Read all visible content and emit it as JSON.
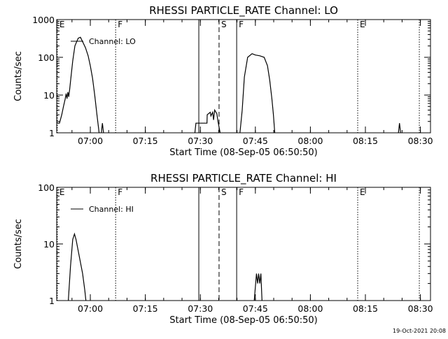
{
  "footer_timestamp": "19-Oct-2021 20:08",
  "chart_data": [
    {
      "type": "line",
      "title": "RHESSI PARTICLE_RATE Channel: LO",
      "xlabel": "Start Time (08-Sep-05 06:50:50)",
      "ylabel": "Counts/sec",
      "yscale": "log",
      "ylim": [
        1,
        1000
      ],
      "xlim": [
        6.8472,
        8.5458
      ],
      "x_unit": "hour of day (08-Sep-05 UT)",
      "x_ticks": [
        {
          "x": 7.0,
          "label": "07:00"
        },
        {
          "x": 7.25,
          "label": "07:15"
        },
        {
          "x": 7.5,
          "label": "07:30"
        },
        {
          "x": 7.75,
          "label": "07:45"
        },
        {
          "x": 8.0,
          "label": "08:00"
        },
        {
          "x": 8.25,
          "label": "08:15"
        },
        {
          "x": 8.5,
          "label": "08:30"
        }
      ],
      "y_ticks": [
        {
          "y": 1,
          "label": "1"
        },
        {
          "y": 10,
          "label": "10"
        },
        {
          "y": 100,
          "label": "100"
        },
        {
          "y": 1000,
          "label": "1000"
        }
      ],
      "legend": {
        "position": "top-left",
        "label": "Channel: LO"
      },
      "events": [
        {
          "x": 6.85,
          "label": "E",
          "style": "dotted"
        },
        {
          "x": 7.115,
          "label": "F",
          "style": "dotted"
        },
        {
          "x": 7.493,
          "label": "",
          "style": "solid"
        },
        {
          "x": 7.585,
          "label": "S",
          "style": "dashed"
        },
        {
          "x": 7.665,
          "label": "F",
          "style": "solid"
        },
        {
          "x": 8.215,
          "label": "E",
          "style": "dotted"
        },
        {
          "x": 8.495,
          "label": "",
          "style": "dotted"
        }
      ],
      "series": [
        {
          "segments": [
            [
              [
                6.85,
                1.8
              ],
              [
                6.86,
                1.8
              ],
              [
                6.87,
                3.0
              ],
              [
                6.878,
                5.0
              ],
              [
                6.886,
                8.0
              ],
              [
                6.89,
                11
              ],
              [
                6.894,
                8
              ],
              [
                6.898,
                12
              ],
              [
                6.902,
                9
              ],
              [
                6.906,
                14
              ],
              [
                6.912,
                30
              ],
              [
                6.92,
                80
              ],
              [
                6.93,
                200
              ],
              [
                6.945,
                320
              ],
              [
                6.955,
                340
              ],
              [
                6.965,
                260
              ],
              [
                6.978,
                180
              ],
              [
                6.99,
                110
              ],
              [
                7.0,
                60
              ],
              [
                7.01,
                28
              ],
              [
                7.02,
                10
              ],
              [
                7.03,
                3
              ],
              [
                7.04,
                1
              ]
            ],
            [
              [
                7.05,
                1
              ],
              [
                7.055,
                1.8
              ],
              [
                7.06,
                1
              ]
            ],
            [
              [
                7.475,
                1
              ],
              [
                7.48,
                1.8
              ],
              [
                7.53,
                1.8
              ],
              [
                7.531,
                3
              ],
              [
                7.545,
                3.5
              ],
              [
                7.548,
                2.8
              ],
              [
                7.556,
                3.5
              ],
              [
                7.56,
                2.2
              ],
              [
                7.565,
                4
              ],
              [
                7.575,
                3.2
              ],
              [
                7.58,
                2
              ],
              [
                7.59,
                1
              ]
            ],
            [
              [
                7.68,
                1
              ],
              [
                7.69,
                4
              ],
              [
                7.7,
                30
              ],
              [
                7.715,
                100
              ],
              [
                7.735,
                125
              ],
              [
                7.75,
                115
              ],
              [
                7.77,
                110
              ],
              [
                7.79,
                100
              ],
              [
                7.805,
                60
              ],
              [
                7.815,
                25
              ],
              [
                7.825,
                8
              ],
              [
                7.832,
                3
              ],
              [
                7.838,
                1
              ]
            ],
            [
              [
                8.4,
                1
              ],
              [
                8.405,
                1.8
              ],
              [
                8.41,
                1
              ]
            ]
          ]
        }
      ]
    },
    {
      "type": "line",
      "title": "RHESSI PARTICLE_RATE Channel: HI",
      "xlabel": "Start Time (08-Sep-05 06:50:50)",
      "ylabel": "Counts/sec",
      "yscale": "log",
      "ylim": [
        1,
        100
      ],
      "xlim": [
        6.8472,
        8.5458
      ],
      "x_unit": "hour of day (08-Sep-05 UT)",
      "x_ticks": [
        {
          "x": 7.0,
          "label": "07:00"
        },
        {
          "x": 7.25,
          "label": "07:15"
        },
        {
          "x": 7.5,
          "label": "07:30"
        },
        {
          "x": 7.75,
          "label": "07:45"
        },
        {
          "x": 8.0,
          "label": "08:00"
        },
        {
          "x": 8.25,
          "label": "08:15"
        },
        {
          "x": 8.5,
          "label": "08:30"
        }
      ],
      "y_ticks": [
        {
          "y": 1,
          "label": "1"
        },
        {
          "y": 10,
          "label": "10"
        },
        {
          "y": 100,
          "label": "100"
        }
      ],
      "legend": {
        "position": "top-left",
        "label": "Channel: HI"
      },
      "events": [
        {
          "x": 6.85,
          "label": "E",
          "style": "dotted"
        },
        {
          "x": 7.115,
          "label": "F",
          "style": "dotted"
        },
        {
          "x": 7.493,
          "label": "",
          "style": "solid"
        },
        {
          "x": 7.585,
          "label": "S",
          "style": "dashed"
        },
        {
          "x": 7.665,
          "label": "F",
          "style": "solid"
        },
        {
          "x": 8.215,
          "label": "E",
          "style": "dotted"
        },
        {
          "x": 8.495,
          "label": "",
          "style": "dotted"
        }
      ],
      "series": [
        {
          "segments": [
            [
              [
                6.9,
                1
              ],
              [
                6.91,
                4
              ],
              [
                6.92,
                12
              ],
              [
                6.928,
                15
              ],
              [
                6.935,
                12
              ],
              [
                6.95,
                6
              ],
              [
                6.965,
                3
              ],
              [
                6.975,
                1.5
              ],
              [
                6.98,
                1
              ]
            ],
            [
              [
                7.745,
                1
              ],
              [
                7.755,
                3
              ],
              [
                7.76,
                2
              ],
              [
                7.765,
                3
              ],
              [
                7.77,
                2
              ],
              [
                7.775,
                3
              ],
              [
                7.78,
                1
              ]
            ]
          ]
        }
      ]
    }
  ]
}
